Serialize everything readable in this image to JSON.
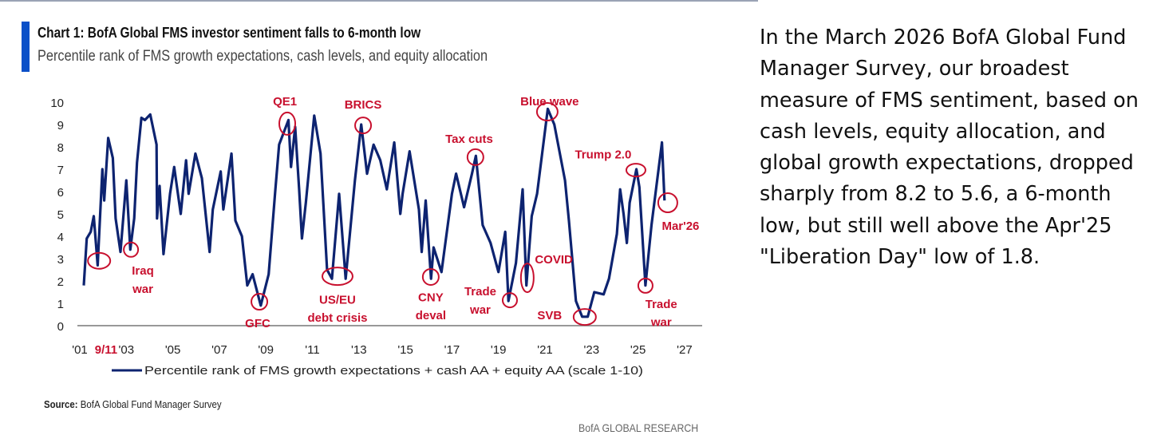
{
  "title": "Chart 1: BofA Global FMS investor sentiment falls to 6-month low",
  "subtitle": "Percentile rank of FMS growth expectations, cash levels, and equity allocation",
  "source_label": "Source:",
  "source_text": "BofA Global Fund Manager Survey",
  "brand": "BofA GLOBAL RESEARCH",
  "commentary": "In the March 2026 BofA Global Fund Manager Survey, our broadest measure of FMS sentiment, based on cash levels, equity allocation, and global growth expectations, dropped sharply from 8.2 to 5.6, a 6-month low, but still well above the Apr'25 \"Liberation Day\" low of 1.8.",
  "colors": {
    "line": "#0d2370",
    "annotation": "#c8102e",
    "accent": "#0a50c8"
  },
  "chart_data": {
    "type": "line",
    "title": "Chart 1: BofA Global FMS investor sentiment falls to 6-month low",
    "xlabel": "",
    "ylabel": "",
    "xlim": [
      2001,
      2027
    ],
    "ylim": [
      0,
      10
    ],
    "grid": false,
    "legend_position": "bottom",
    "y_ticks": [
      "0",
      "1",
      "2",
      "3",
      "4",
      "5",
      "6",
      "7",
      "8",
      "9",
      "10"
    ],
    "x_ticks": [
      {
        "year": 2001,
        "label": "'01"
      },
      {
        "year": 2003,
        "label": "'03"
      },
      {
        "year": 2005,
        "label": "'05"
      },
      {
        "year": 2007,
        "label": "'07"
      },
      {
        "year": 2009,
        "label": "'09"
      },
      {
        "year": 2011,
        "label": "'11"
      },
      {
        "year": 2013,
        "label": "'13"
      },
      {
        "year": 2015,
        "label": "'15"
      },
      {
        "year": 2017,
        "label": "'17"
      },
      {
        "year": 2019,
        "label": "'19"
      },
      {
        "year": 2021,
        "label": "'21"
      },
      {
        "year": 2023,
        "label": "'23"
      },
      {
        "year": 2025,
        "label": "'25"
      },
      {
        "year": 2027,
        "label": "'27"
      }
    ],
    "series": [
      {
        "name": "Percentile rank of FMS growth expectations + cash AA + equity AA (scale 1-10)",
        "points": [
          [
            2001.17,
            1.8
          ],
          [
            2001.3,
            3.9
          ],
          [
            2001.47,
            4.2
          ],
          [
            2001.6,
            4.9
          ],
          [
            2001.77,
            2.7
          ],
          [
            2001.97,
            7.0
          ],
          [
            2002.05,
            5.6
          ],
          [
            2002.22,
            8.4
          ],
          [
            2002.42,
            7.5
          ],
          [
            2002.54,
            4.8
          ],
          [
            2002.75,
            3.3
          ],
          [
            2003.0,
            6.5
          ],
          [
            2003.17,
            3.4
          ],
          [
            2003.34,
            4.8
          ],
          [
            2003.46,
            7.3
          ],
          [
            2003.65,
            9.3
          ],
          [
            2003.8,
            9.2
          ],
          [
            2004.03,
            9.45
          ],
          [
            2004.3,
            8.1
          ],
          [
            2004.32,
            4.8
          ],
          [
            2004.43,
            6.25
          ],
          [
            2004.6,
            3.2
          ],
          [
            2004.88,
            5.9
          ],
          [
            2005.06,
            7.1
          ],
          [
            2005.34,
            5.0
          ],
          [
            2005.57,
            7.4
          ],
          [
            2005.68,
            5.9
          ],
          [
            2005.97,
            7.7
          ],
          [
            2006.25,
            6.6
          ],
          [
            2006.58,
            3.3
          ],
          [
            2006.72,
            5.2
          ],
          [
            2007.06,
            6.9
          ],
          [
            2007.17,
            5.2
          ],
          [
            2007.52,
            7.7
          ],
          [
            2007.69,
            4.7
          ],
          [
            2007.97,
            4.0
          ],
          [
            2008.2,
            1.8
          ],
          [
            2008.43,
            2.3
          ],
          [
            2008.78,
            0.9
          ],
          [
            2009.12,
            2.3
          ],
          [
            2009.4,
            6.0
          ],
          [
            2009.57,
            8.1
          ],
          [
            2009.97,
            9.2
          ],
          [
            2010.08,
            7.1
          ],
          [
            2010.26,
            8.9
          ],
          [
            2010.43,
            6.1
          ],
          [
            2010.55,
            3.9
          ],
          [
            2010.72,
            5.5
          ],
          [
            2011.08,
            9.4
          ],
          [
            2011.35,
            7.7
          ],
          [
            2011.63,
            2.5
          ],
          [
            2011.84,
            2.1
          ],
          [
            2012.15,
            5.9
          ],
          [
            2012.43,
            2.1
          ],
          [
            2012.83,
            6.5
          ],
          [
            2013.1,
            9.0
          ],
          [
            2013.35,
            6.8
          ],
          [
            2013.63,
            8.1
          ],
          [
            2013.92,
            7.4
          ],
          [
            2014.2,
            6.1
          ],
          [
            2014.52,
            8.2
          ],
          [
            2014.78,
            5.0
          ],
          [
            2014.88,
            5.9
          ],
          [
            2015.18,
            7.8
          ],
          [
            2015.58,
            5.2
          ],
          [
            2015.7,
            3.3
          ],
          [
            2015.87,
            5.6
          ],
          [
            2016.1,
            2.1
          ],
          [
            2016.21,
            3.5
          ],
          [
            2016.55,
            2.4
          ],
          [
            2017.0,
            5.9
          ],
          [
            2017.18,
            6.8
          ],
          [
            2017.52,
            5.3
          ],
          [
            2017.86,
            6.8
          ],
          [
            2018.03,
            7.6
          ],
          [
            2018.32,
            4.5
          ],
          [
            2018.66,
            3.7
          ],
          [
            2019.0,
            2.4
          ],
          [
            2019.29,
            4.2
          ],
          [
            2019.43,
            1.1
          ],
          [
            2019.75,
            2.8
          ],
          [
            2020.04,
            6.1
          ],
          [
            2020.2,
            1.8
          ],
          [
            2020.43,
            4.9
          ],
          [
            2020.66,
            5.9
          ],
          [
            2021.12,
            9.7
          ],
          [
            2021.4,
            9.0
          ],
          [
            2021.86,
            6.5
          ],
          [
            2022.03,
            4.7
          ],
          [
            2022.33,
            1.1
          ],
          [
            2022.6,
            0.4
          ],
          [
            2022.84,
            0.4
          ],
          [
            2023.12,
            1.5
          ],
          [
            2023.52,
            1.4
          ],
          [
            2023.75,
            2.1
          ],
          [
            2024.09,
            4.1
          ],
          [
            2024.23,
            6.1
          ],
          [
            2024.38,
            5.0
          ],
          [
            2024.52,
            3.7
          ],
          [
            2024.64,
            5.5
          ],
          [
            2024.93,
            7.0
          ],
          [
            2025.06,
            6.2
          ],
          [
            2025.32,
            1.8
          ],
          [
            2025.58,
            4.5
          ],
          [
            2026.03,
            8.2
          ],
          [
            2026.14,
            5.6
          ]
        ]
      }
    ],
    "annotations": [
      {
        "text": [
          "9/11"
        ],
        "x": 2001.83,
        "y": 2.9,
        "label_x": 2002.13,
        "label_y": [
          -1.04
        ]
      },
      {
        "text": [
          "Iraq",
          "war"
        ],
        "x": 2003.2,
        "y": 3.4,
        "label_x": 2003.71,
        "label_y": [
          2.5,
          1.68
        ]
      },
      {
        "text": [
          "QE1"
        ],
        "x": 2009.92,
        "y": 9.04,
        "label_x": 2009.82,
        "label_y": [
          10.07
        ]
      },
      {
        "text": [
          "GFC"
        ],
        "x": 2008.72,
        "y": 1.07,
        "label_x": 2008.65,
        "label_y": [
          0.14
        ]
      },
      {
        "text": [
          "US/EU",
          "debt crisis"
        ],
        "x": 2012.08,
        "y": 2.21,
        "label_x": 2012.08,
        "label_y": [
          1.2,
          0.4
        ]
      },
      {
        "text": [
          "BRICS"
        ],
        "x": 2013.18,
        "y": 8.96,
        "label_x": 2013.18,
        "label_y": [
          9.93
        ]
      },
      {
        "text": [
          "CNY",
          "deval"
        ],
        "x": 2016.09,
        "y": 2.18,
        "label_x": 2016.09,
        "label_y": [
          1.3,
          0.5
        ]
      },
      {
        "text": [
          "Tax cuts"
        ],
        "x": 2018.01,
        "y": 7.54,
        "label_x": 2017.74,
        "label_y": [
          8.4
        ]
      },
      {
        "text": [
          "Trade",
          "war"
        ],
        "x": 2019.49,
        "y": 1.14,
        "label_x": 2018.22,
        "label_y": [
          1.57,
          0.75
        ]
      },
      {
        "text": [
          "COVID"
        ],
        "x": 2020.24,
        "y": 2.14,
        "label_x": 2021.38,
        "label_y": [
          3.0
        ]
      },
      {
        "text": [
          "Blue wave"
        ],
        "x": 2021.1,
        "y": 9.57,
        "label_x": 2021.2,
        "label_y": [
          10.07
        ]
      },
      {
        "text": [
          "SVB"
        ],
        "x": 2022.71,
        "y": 0.39,
        "label_x": 2021.2,
        "label_y": [
          0.5
        ]
      },
      {
        "text": [
          "Trump 2.0"
        ],
        "x": 2024.91,
        "y": 6.96,
        "label_x": 2023.5,
        "label_y": [
          7.7
        ]
      },
      {
        "text": [
          "Trade",
          "war"
        ],
        "x": 2025.32,
        "y": 1.79,
        "label_x": 2026.0,
        "label_y": [
          1.0,
          0.2
        ]
      },
      {
        "text": [
          "Mar'26"
        ],
        "x": 2026.28,
        "y": 5.5,
        "label_x": 2026.83,
        "label_y": [
          4.5
        ]
      }
    ]
  }
}
